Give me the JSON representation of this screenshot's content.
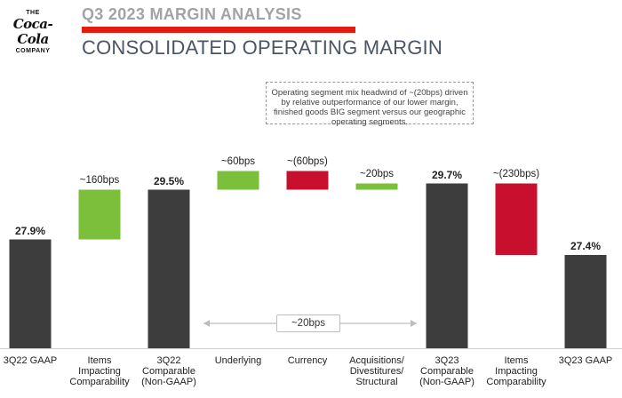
{
  "header": {
    "logo_top": "THE",
    "logo_script": "Coca-Cola",
    "logo_bottom": "COMPANY",
    "subtitle": "Q3 2023 MARGIN ANALYSIS",
    "title": "CONSOLIDATED OPERATING MARGIN"
  },
  "colors": {
    "total": "#3d3d3d",
    "increase": "#7bbf3a",
    "decrease": "#c8102e",
    "accent_bar": "#e41b13"
  },
  "annotation": "Operating segment mix headwind of ~(20bps) driven by relative outperformance of our lower margin, finished goods BIG segment versus our geographic operating segments.",
  "bracket_label": "~20bps",
  "chart_data": {
    "type": "waterfall",
    "title": "CONSOLIDATED OPERATING MARGIN",
    "unit": "%",
    "ylim": [
      24.4,
      31.6
    ],
    "bars": [
      {
        "category": [
          "3Q22 GAAP"
        ],
        "kind": "total",
        "start": 0,
        "end": 27.9,
        "label": "27.9%"
      },
      {
        "category": [
          "Items",
          "Impacting",
          "Comparability"
        ],
        "kind": "increase",
        "start": 27.9,
        "end": 29.5,
        "label": "~160bps"
      },
      {
        "category": [
          "3Q22",
          "Comparable",
          "(Non-GAAP)"
        ],
        "kind": "total",
        "start": 0,
        "end": 29.5,
        "label": "29.5%"
      },
      {
        "category": [
          "Underlying"
        ],
        "kind": "increase",
        "start": 29.5,
        "end": 30.1,
        "label": "~60bps"
      },
      {
        "category": [
          "Currency"
        ],
        "kind": "decrease",
        "start": 30.1,
        "end": 29.5,
        "label": "~(60bps)"
      },
      {
        "category": [
          "Acquisitions/",
          "Divestitures/",
          "Structural"
        ],
        "kind": "increase",
        "start": 29.5,
        "end": 29.7,
        "label": "~20bps"
      },
      {
        "category": [
          "3Q23",
          "Comparable",
          "(Non-GAAP)"
        ],
        "kind": "total",
        "start": 0,
        "end": 29.7,
        "label": "29.7%"
      },
      {
        "category": [
          "Items",
          "Impacting",
          "Comparability"
        ],
        "kind": "decrease",
        "start": 29.7,
        "end": 27.4,
        "label": "~(230bps)"
      },
      {
        "category": [
          "3Q23 GAAP"
        ],
        "kind": "total",
        "start": 0,
        "end": 27.4,
        "label": "27.4%"
      }
    ]
  }
}
